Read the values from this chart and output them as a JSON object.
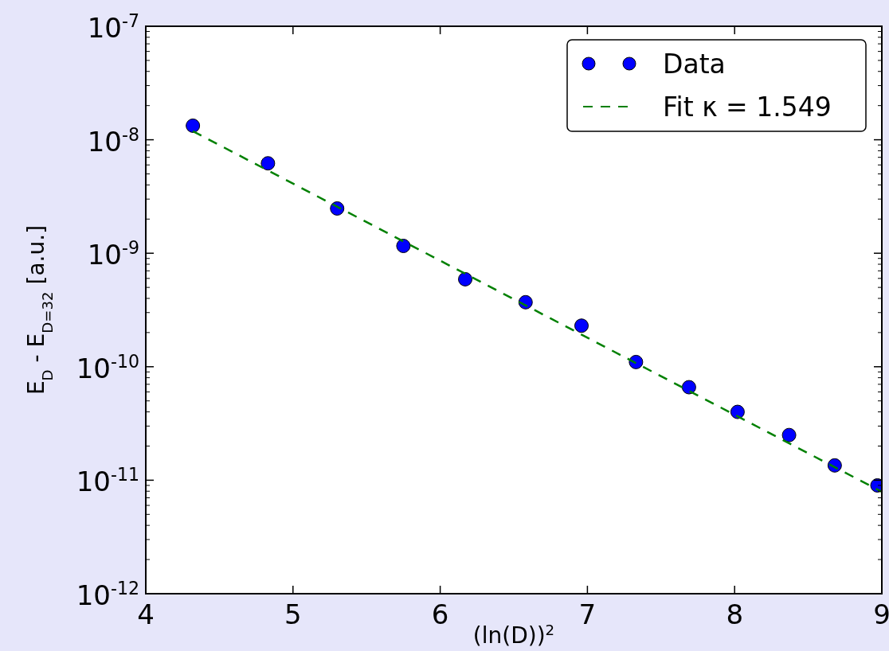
{
  "chart_data": {
    "type": "scatter",
    "xlabel": "(ln(D))$^{2}$",
    "ylabel": "E$_{D}$ - E$_{D=32}$ [a.u.]",
    "log": "y",
    "xlim": [
      4,
      9
    ],
    "xticks": [
      4,
      5,
      6,
      7,
      8,
      9
    ],
    "ylim": [
      1e-12,
      1e-07
    ],
    "yticks": [
      {
        "value": 1e-12,
        "label": "10$^{-12}$"
      },
      {
        "value": 1e-11,
        "label": "10$^{-11}$"
      },
      {
        "value": 1e-10,
        "label": "10$^{-10}$"
      },
      {
        "value": 1e-09,
        "label": "10$^{-9}$"
      },
      {
        "value": 1e-08,
        "label": "10$^{-8}$"
      },
      {
        "value": 1e-07,
        "label": "10$^{-7}$"
      }
    ],
    "grid": false,
    "legend": "top right",
    "series": [
      {
        "name": "Data",
        "marker": "circle",
        "color": "#0000ff",
        "x": [
          4.32,
          4.83,
          5.3,
          5.75,
          6.17,
          6.58,
          6.96,
          7.33,
          7.69,
          8.02,
          8.37,
          8.68,
          8.97
        ],
        "values": [
          1.33e-08,
          6.2e-09,
          2.48e-09,
          1.16e-09,
          5.9e-10,
          3.7e-10,
          2.3e-10,
          1.1e-10,
          6.6e-11,
          4e-11,
          2.5e-11,
          1.35e-11,
          9e-12
        ]
      },
      {
        "name": "Fit κ = 1.549",
        "type": "line",
        "line_style": "dashed",
        "color": "#008000",
        "x": [
          4.32,
          9
        ],
        "values": [
          1.19e-08,
          7.9e-12
        ]
      }
    ]
  }
}
